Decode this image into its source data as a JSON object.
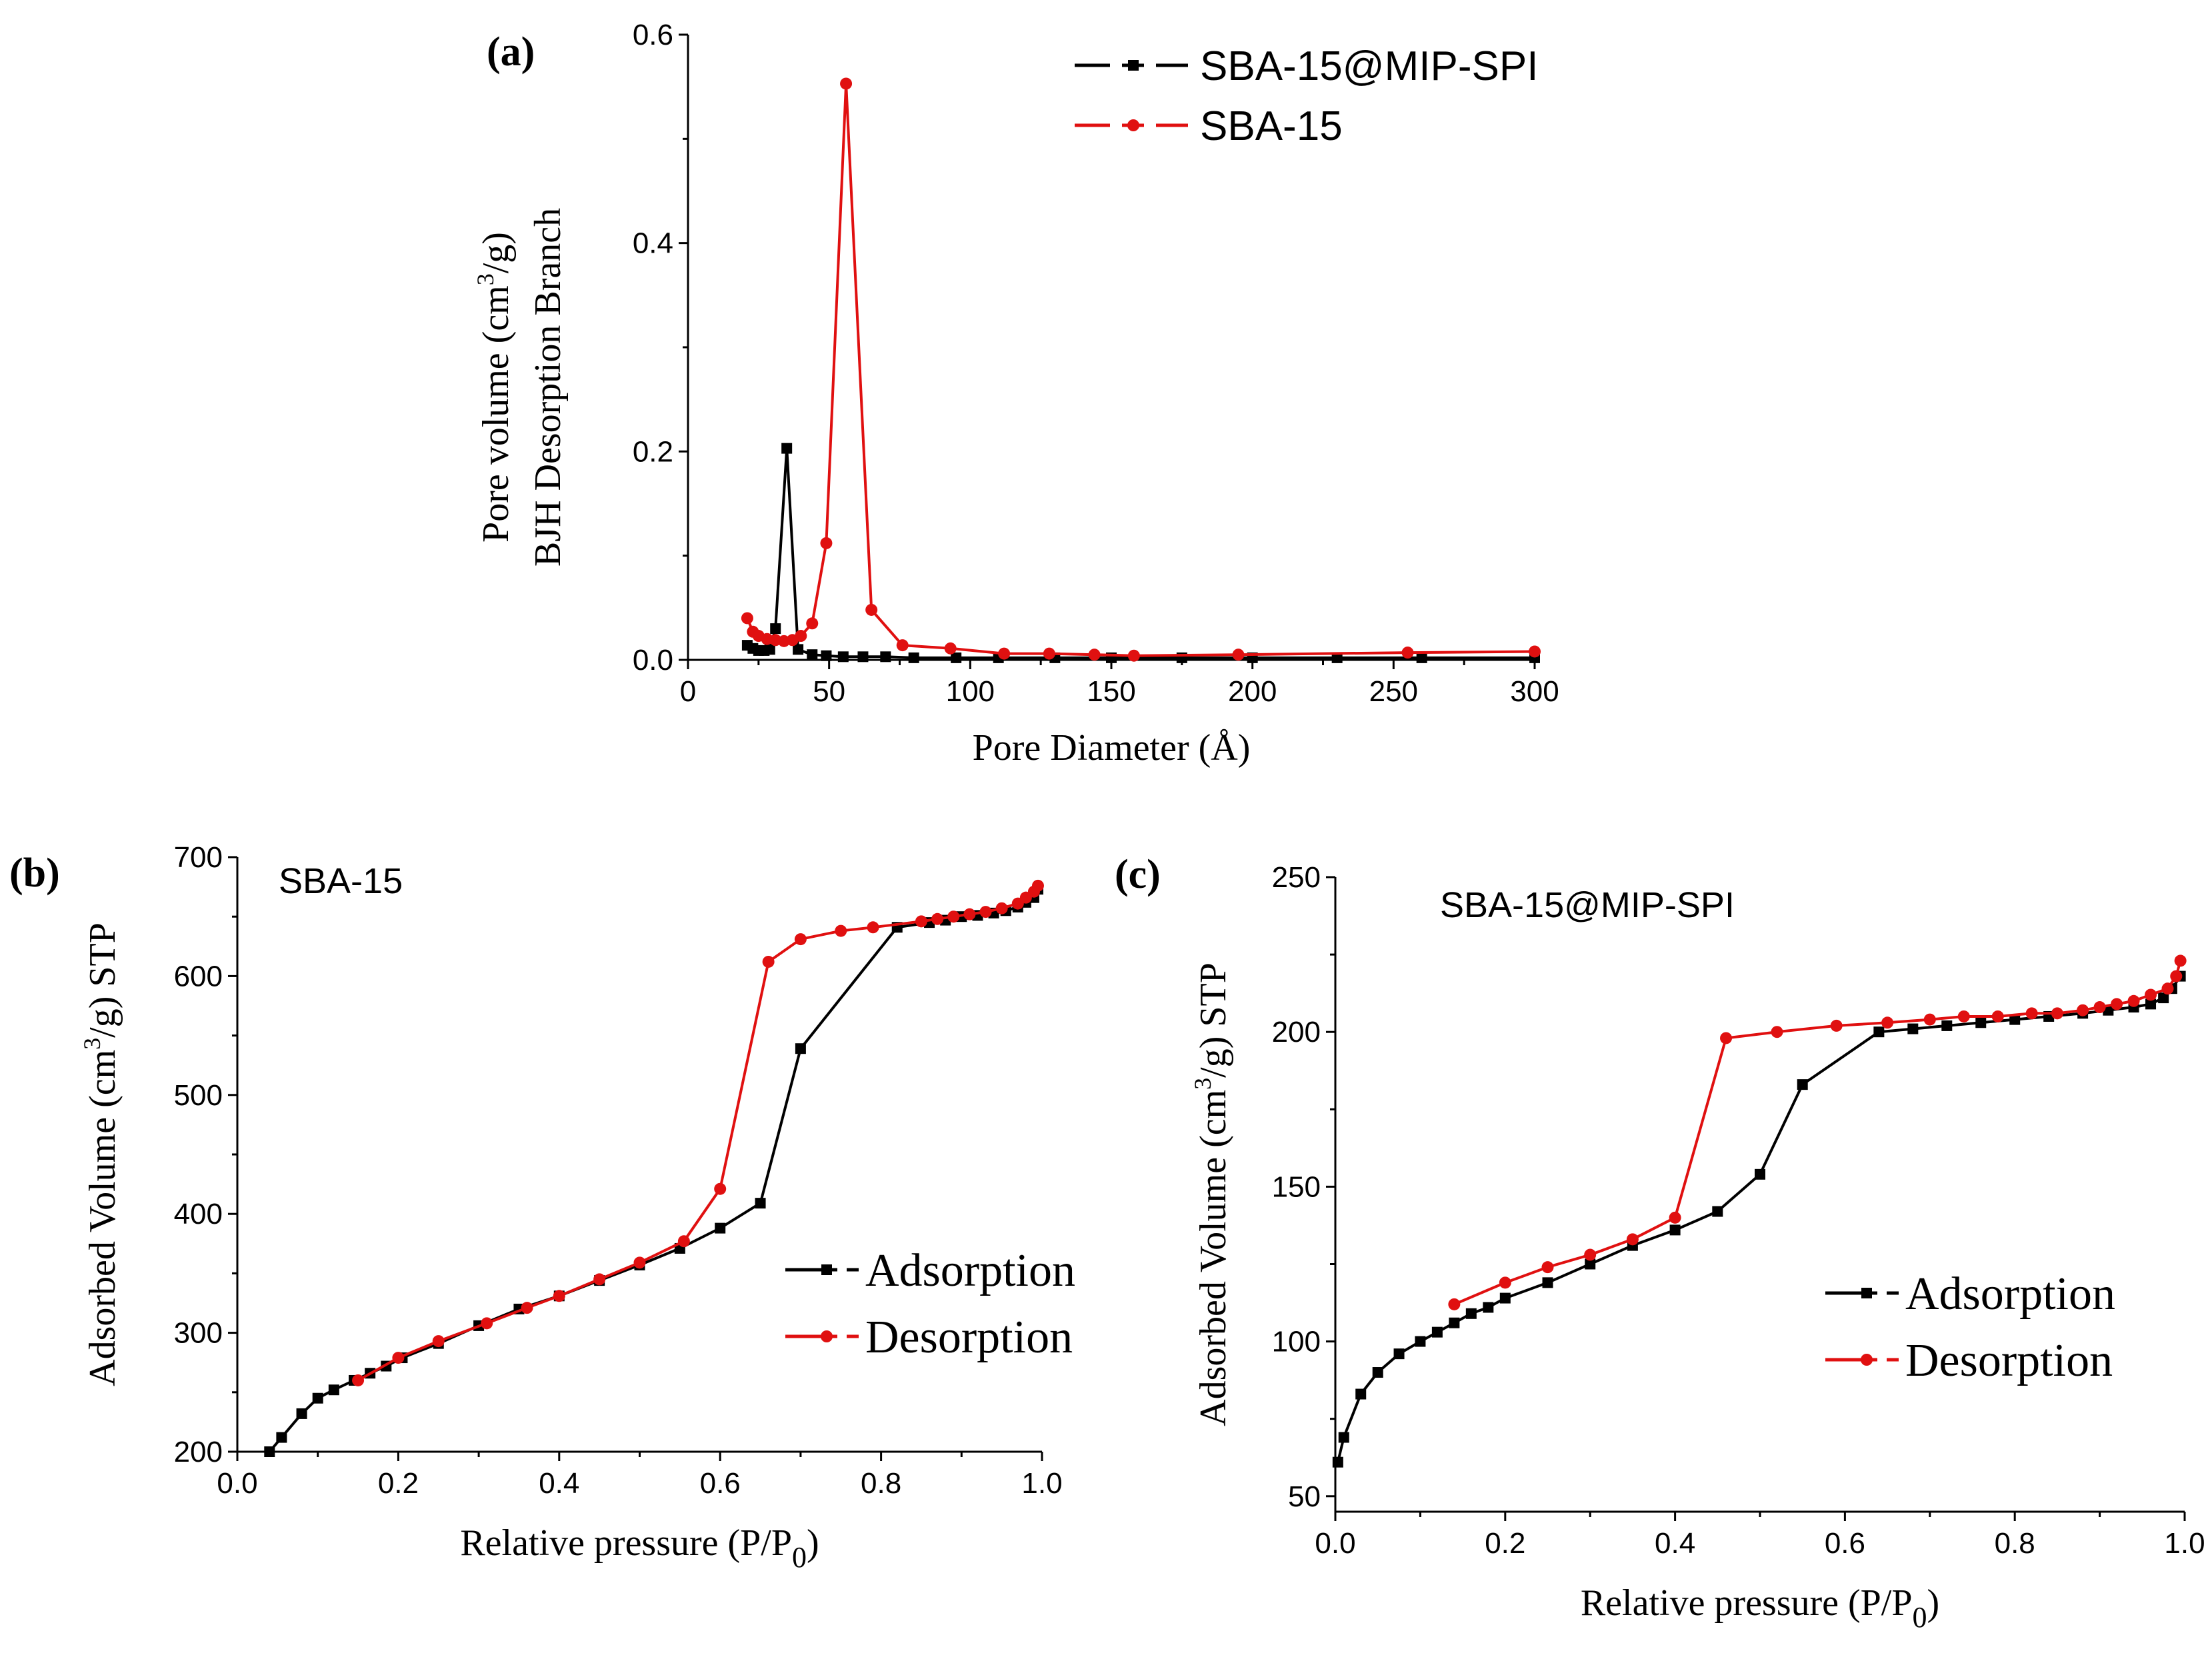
{
  "colors": {
    "black_series": "#000000",
    "red_series": "#e01010"
  },
  "chart_data": [
    {
      "id": "a",
      "type": "line",
      "panel_label": "(a)",
      "title": "",
      "xlabel": "Pore Diameter (Å)",
      "ylabel_line1": "BJH Desorption Branch",
      "ylabel_line2_prefix": "Pore volume (cm",
      "ylabel_line2_sup": "3",
      "ylabel_line2_suffix": "/g)",
      "xlim": [
        0,
        300
      ],
      "ylim": [
        0,
        0.6
      ],
      "xticks": [
        0,
        50,
        100,
        150,
        200,
        250,
        300
      ],
      "xtick_labels": [
        "0",
        "50",
        "100",
        "150",
        "200",
        "250",
        "300"
      ],
      "yticks": [
        0.0,
        0.2,
        0.4,
        0.6
      ],
      "ytick_labels": [
        "0.0",
        "0.2",
        "0.4",
        "0.6"
      ],
      "legend_position": "top-right",
      "series": [
        {
          "name": "SBA-15@MIP-SPI",
          "color": "#000000",
          "marker": "square",
          "x": [
            21,
            23,
            25,
            27,
            29,
            31,
            35,
            39,
            44,
            49,
            55,
            62,
            70,
            80,
            95,
            110,
            130,
            150,
            175,
            200,
            230,
            260,
            300
          ],
          "y": [
            0.014,
            0.011,
            0.009,
            0.009,
            0.01,
            0.03,
            0.203,
            0.01,
            0.005,
            0.004,
            0.003,
            0.003,
            0.003,
            0.002,
            0.002,
            0.002,
            0.002,
            0.002,
            0.002,
            0.002,
            0.002,
            0.002,
            0.002
          ]
        },
        {
          "name": "SBA-15",
          "color": "#e01010",
          "marker": "circle",
          "x": [
            21,
            23,
            25,
            28,
            31,
            34,
            37,
            40,
            44,
            49,
            56,
            65,
            76,
            93,
            112,
            128,
            144,
            158,
            195,
            255,
            300
          ],
          "y": [
            0.04,
            0.027,
            0.023,
            0.02,
            0.019,
            0.018,
            0.019,
            0.023,
            0.035,
            0.112,
            0.553,
            0.048,
            0.014,
            0.011,
            0.006,
            0.006,
            0.005,
            0.004,
            0.005,
            0.007,
            0.008
          ]
        }
      ]
    },
    {
      "id": "b",
      "type": "line",
      "panel_label": "(b)",
      "inset_title": "SBA-15",
      "xlabel_prefix": "Relative pressure (P/P",
      "xlabel_sub": "0",
      "xlabel_suffix": ")",
      "ylabel_prefix": "Adsorbed Volume (cm",
      "ylabel_sup": "3",
      "ylabel_suffix": "/g) STP",
      "xlim": [
        0,
        1.0
      ],
      "ylim": [
        200,
        700
      ],
      "xticks": [
        0.0,
        0.2,
        0.4,
        0.6,
        0.8,
        1.0
      ],
      "xtick_labels": [
        "0.0",
        "0.2",
        "0.4",
        "0.6",
        "0.8",
        "1.0"
      ],
      "yticks": [
        200,
        300,
        400,
        500,
        600,
        700
      ],
      "ytick_labels": [
        "200",
        "300",
        "400",
        "500",
        "600",
        "700"
      ],
      "legend_position": "bottom-right",
      "series": [
        {
          "name": "Adsorption",
          "color": "#000000",
          "marker": "square",
          "x": [
            0.04,
            0.055,
            0.08,
            0.1,
            0.12,
            0.145,
            0.165,
            0.185,
            0.205,
            0.25,
            0.3,
            0.35,
            0.4,
            0.45,
            0.5,
            0.55,
            0.6,
            0.65,
            0.7,
            0.82,
            0.86,
            0.88,
            0.9,
            0.92,
            0.94,
            0.955,
            0.97,
            0.98,
            0.99,
            0.995
          ],
          "y": [
            200,
            212,
            232,
            245,
            252,
            260,
            266,
            272,
            279,
            291,
            306,
            320,
            331,
            344,
            357,
            371,
            388,
            409,
            539,
            641,
            645,
            647,
            650,
            651,
            653,
            655,
            658,
            662,
            666,
            673
          ]
        },
        {
          "name": "Desorption",
          "color": "#e01010",
          "marker": "circle",
          "x": [
            0.995,
            0.99,
            0.98,
            0.97,
            0.95,
            0.93,
            0.91,
            0.89,
            0.87,
            0.85,
            0.79,
            0.75,
            0.7,
            0.66,
            0.6,
            0.555,
            0.5,
            0.45,
            0.4,
            0.36,
            0.31,
            0.25,
            0.2,
            0.15
          ],
          "y": [
            676,
            671,
            666,
            661,
            657,
            654,
            652,
            650,
            648,
            646,
            641,
            638,
            631,
            612,
            421,
            377,
            359,
            345,
            331,
            321,
            308,
            293,
            279,
            260
          ]
        }
      ]
    },
    {
      "id": "c",
      "type": "line",
      "panel_label": "(c)",
      "inset_title": "SBA-15@MIP-SPI",
      "xlabel_prefix": "Relative pressure (P/P",
      "xlabel_sub": "0",
      "xlabel_suffix": ")",
      "ylabel_prefix": "Adsorbed Volume (cm",
      "ylabel_sup": "3",
      "ylabel_suffix": "/g) STP",
      "xlim": [
        0,
        1.0
      ],
      "ylim": [
        45,
        250
      ],
      "xticks": [
        0.0,
        0.2,
        0.4,
        0.6,
        0.8,
        1.0
      ],
      "xtick_labels": [
        "0.0",
        "0.2",
        "0.4",
        "0.6",
        "0.8",
        "1.0"
      ],
      "yticks": [
        50,
        100,
        150,
        200,
        250
      ],
      "ytick_labels": [
        "50",
        "100",
        "150",
        "200",
        "250"
      ],
      "legend_position": "bottom-right",
      "series": [
        {
          "name": "Adsorption",
          "color": "#000000",
          "marker": "square",
          "x": [
            0.003,
            0.01,
            0.03,
            0.05,
            0.075,
            0.1,
            0.12,
            0.14,
            0.16,
            0.18,
            0.2,
            0.25,
            0.3,
            0.35,
            0.4,
            0.45,
            0.5,
            0.55,
            0.64,
            0.68,
            0.72,
            0.76,
            0.8,
            0.84,
            0.88,
            0.91,
            0.94,
            0.96,
            0.975,
            0.985,
            0.995
          ],
          "y": [
            61,
            69,
            83,
            90,
            96,
            100,
            103,
            106,
            109,
            111,
            114,
            119,
            125,
            131,
            136,
            142,
            154,
            183,
            200,
            201,
            202,
            203,
            204,
            205,
            206,
            207,
            208,
            209,
            211,
            214,
            218
          ]
        },
        {
          "name": "Desorption",
          "color": "#e01010",
          "marker": "circle",
          "x": [
            0.995,
            0.99,
            0.98,
            0.96,
            0.94,
            0.92,
            0.9,
            0.88,
            0.85,
            0.82,
            0.78,
            0.74,
            0.7,
            0.65,
            0.59,
            0.52,
            0.46,
            0.4,
            0.35,
            0.3,
            0.25,
            0.2,
            0.14
          ],
          "y": [
            223,
            218,
            214,
            212,
            210,
            209,
            208,
            207,
            206,
            206,
            205,
            205,
            204,
            203,
            202,
            200,
            198,
            140,
            133,
            128,
            124,
            119,
            112
          ]
        }
      ]
    }
  ]
}
